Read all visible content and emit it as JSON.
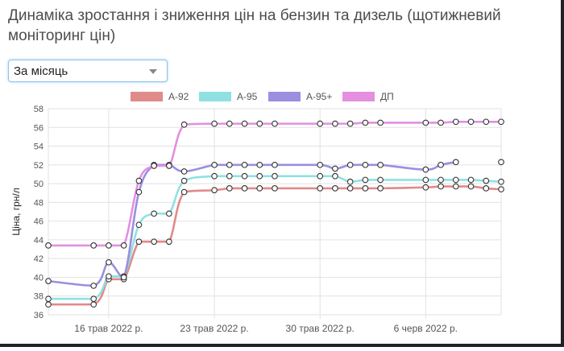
{
  "page": {
    "title": "Динаміка зростання і зниження цін на бензин та дизель (щотижневий моніторинг цін)",
    "period_select": {
      "value": "За місяць"
    }
  },
  "colors": {
    "A-92": "#e08a8a",
    "A-95": "#8fe1e1",
    "A-95+": "#9a8fe0",
    "ДП": "#e48fe0",
    "grid": "#e2e2e2",
    "axis_text": "#555555"
  },
  "chart_data": {
    "type": "line",
    "title": "",
    "xlabel": "",
    "ylabel": "Ціна, грн/л",
    "ylim": [
      36,
      58
    ],
    "yticks": [
      36,
      38,
      40,
      42,
      44,
      46,
      48,
      50,
      52,
      54,
      56,
      58
    ],
    "grid": true,
    "legend_position": "top",
    "xticks": [
      {
        "x": "2022-05-16",
        "label": "16 трав 2022 р."
      },
      {
        "x": "2022-05-23",
        "label": "23 трав 2022 р."
      },
      {
        "x": "2022-05-30",
        "label": "30 трав 2022 р."
      },
      {
        "x": "2022-06-06",
        "label": "6 черв 2022 р."
      }
    ],
    "x": [
      "2022-05-12",
      "2022-05-15",
      "2022-05-16",
      "2022-05-17",
      "2022-05-18",
      "2022-05-19",
      "2022-05-20",
      "2022-05-21",
      "2022-05-23",
      "2022-05-24",
      "2022-05-25",
      "2022-05-26",
      "2022-05-27",
      "2022-05-30",
      "2022-05-31",
      "2022-06-01",
      "2022-06-02",
      "2022-06-03",
      "2022-06-06",
      "2022-06-07",
      "2022-06-08",
      "2022-06-09",
      "2022-06-10",
      "2022-06-11"
    ],
    "series": [
      {
        "name": "A-92",
        "values": [
          37.1,
          37.1,
          39.8,
          39.8,
          43.8,
          43.8,
          43.8,
          49.1,
          49.3,
          49.5,
          49.5,
          49.5,
          49.5,
          49.5,
          49.5,
          49.5,
          49.5,
          49.5,
          49.6,
          49.7,
          49.7,
          49.7,
          49.5,
          49.4
        ]
      },
      {
        "name": "A-95",
        "values": [
          37.7,
          37.7,
          40.1,
          40.1,
          45.6,
          46.8,
          46.8,
          50.3,
          50.8,
          50.8,
          50.8,
          50.8,
          50.8,
          50.8,
          50.8,
          50.2,
          50.4,
          50.4,
          50.4,
          50.4,
          50.4,
          50.4,
          50.3,
          50.2
        ]
      },
      {
        "name": "A-95+",
        "values": [
          39.6,
          39.1,
          41.6,
          40.0,
          49.1,
          52.0,
          52.0,
          51.3,
          52.0,
          52.0,
          52.0,
          52.0,
          52.0,
          52.0,
          51.6,
          52.0,
          52.0,
          52.0,
          51.5,
          52.0,
          52.3,
          null,
          null,
          52.3
        ]
      },
      {
        "name": "ДП",
        "values": [
          43.4,
          43.4,
          43.4,
          43.4,
          50.3,
          51.9,
          51.9,
          56.3,
          56.4,
          56.4,
          56.4,
          56.4,
          56.4,
          56.4,
          56.4,
          56.4,
          56.5,
          56.5,
          56.5,
          56.5,
          56.6,
          56.6,
          56.6,
          56.6
        ]
      }
    ]
  }
}
